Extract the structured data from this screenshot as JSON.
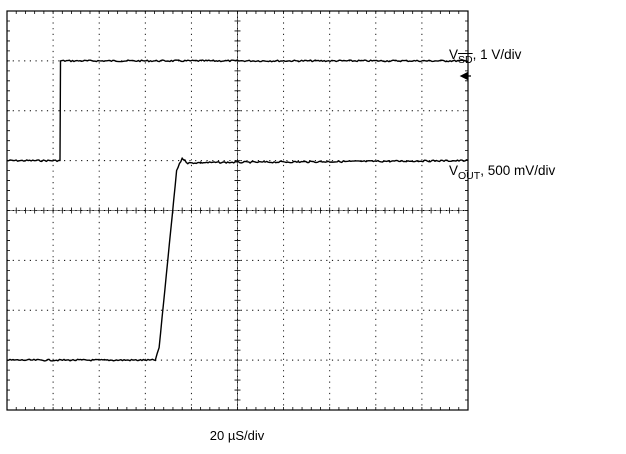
{
  "chart_data": {
    "type": "line",
    "title": "",
    "xlabel": "20 µS/div",
    "ylabel": "",
    "x_divisions": 10,
    "y_divisions": 8,
    "xlim": [
      0,
      10
    ],
    "ylim": [
      0,
      8
    ],
    "grid": true,
    "series": [
      {
        "name_parts": {
          "symbol": "V",
          "subscript": "SD",
          "scale": ", 1 V/div"
        },
        "color": "#000000",
        "points": [
          [
            0,
            5.0
          ],
          [
            1.15,
            5.0
          ],
          [
            1.16,
            7.0
          ],
          [
            10,
            7.0
          ]
        ]
      },
      {
        "name_parts": {
          "symbol": "V",
          "subscript": "OUT",
          "scale": ", 500 mV/div"
        },
        "color": "#000000",
        "points": [
          [
            0,
            1.0
          ],
          [
            3.22,
            1.0
          ],
          [
            3.3,
            1.25
          ],
          [
            3.68,
            4.8
          ],
          [
            3.8,
            5.05
          ],
          [
            3.92,
            4.95
          ],
          [
            4.2,
            4.96
          ],
          [
            10,
            5.0
          ]
        ]
      }
    ]
  }
}
